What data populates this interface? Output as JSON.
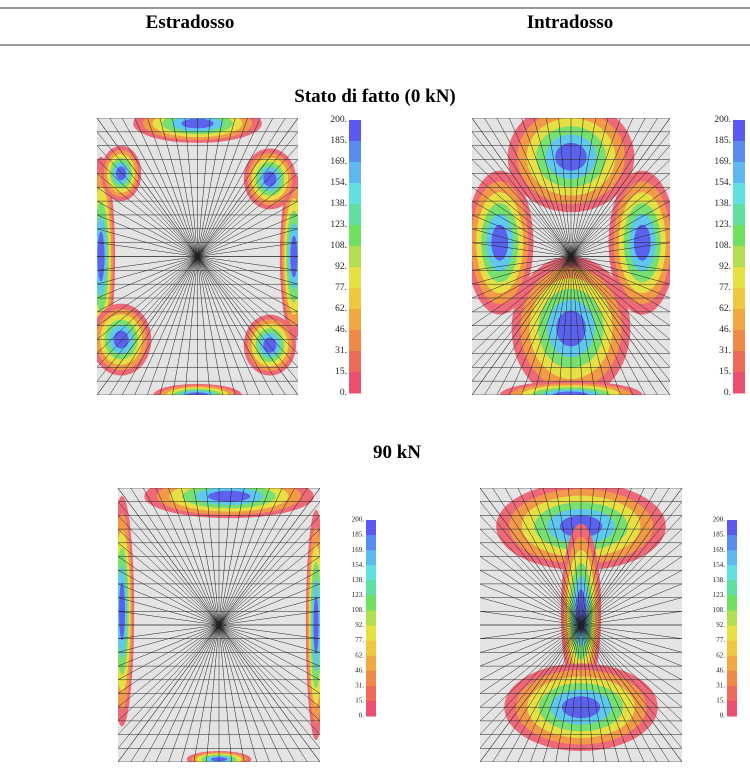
{
  "header": {
    "columns": [
      "Estradosso",
      "Intradosso"
    ]
  },
  "sections": [
    {
      "title": "Stato di fatto (0 kN)",
      "panels": [
        {
          "scale": [
            "200.",
            "185.",
            "169.",
            "154.",
            "138.",
            "123.",
            "108.",
            "92.",
            "77.",
            "62.",
            "46.",
            "31.",
            "15.",
            "0."
          ]
        },
        {
          "scale": [
            "200.",
            "185.",
            "169.",
            "154.",
            "138.",
            "123.",
            "108.",
            "92.",
            "77.",
            "62.",
            "46.",
            "31.",
            "15.",
            "0."
          ]
        }
      ]
    },
    {
      "title": "90 kN",
      "panels": [
        {
          "scale": [
            "200.",
            "185.",
            "169.",
            "154.",
            "138.",
            "123.",
            "108.",
            "92.",
            "77.",
            "62.",
            "46.",
            "31.",
            "15.",
            "0."
          ]
        },
        {
          "scale": [
            "200.",
            "185.",
            "169.",
            "154.",
            "138.",
            "123.",
            "108.",
            "92.",
            "77.",
            "62.",
            "46.",
            "31.",
            "15.",
            "0."
          ]
        }
      ]
    }
  ]
}
